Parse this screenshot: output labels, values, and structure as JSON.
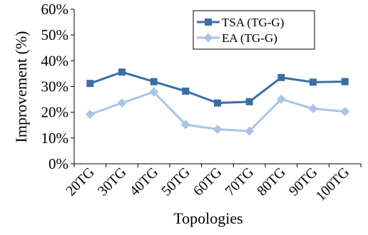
{
  "chart_data": {
    "type": "line",
    "title": "",
    "xlabel": "Topologies",
    "ylabel": "Improvement (%)",
    "categories": [
      "20TG",
      "30TG",
      "40TG",
      "50TG",
      "60TG",
      "70TG",
      "80TG",
      "90TG",
      "100TG"
    ],
    "ylim": [
      0,
      60
    ],
    "yticks": [
      "0%",
      "10%",
      "20%",
      "30%",
      "40%",
      "50%",
      "60%"
    ],
    "grid": false,
    "legend_position": "top-right",
    "series": [
      {
        "name": "TSA (TG-G)",
        "color": "#3a6ea5",
        "marker": "square",
        "values": [
          31.2,
          35.6,
          31.9,
          28.2,
          23.6,
          24.1,
          33.5,
          31.7,
          31.9
        ]
      },
      {
        "name": "EA (TG-G)",
        "color": "#a9c4e6",
        "marker": "diamond",
        "values": [
          19.2,
          23.6,
          27.9,
          15.2,
          13.4,
          12.7,
          25.1,
          21.4,
          20.3
        ]
      }
    ]
  }
}
